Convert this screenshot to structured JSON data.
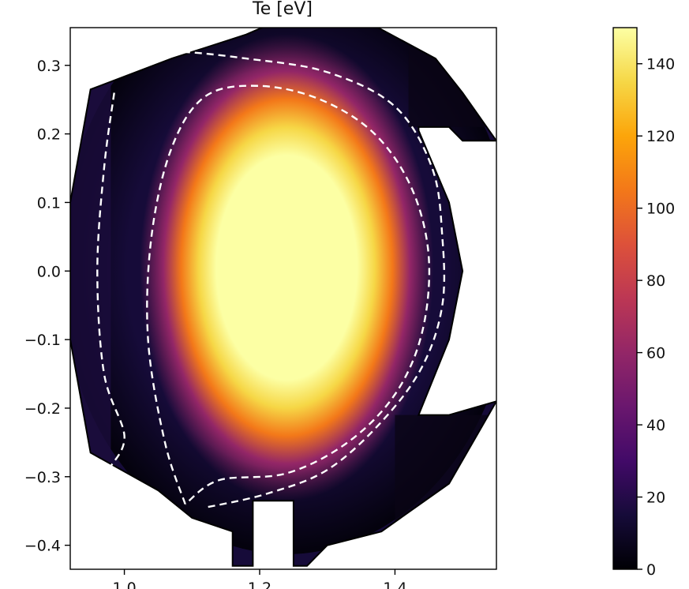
{
  "chart_data": {
    "type": "heatmap",
    "title": "Te [eV]",
    "colormap": "inferno",
    "xlim": [
      0.92,
      1.55
    ],
    "ylim": [
      -0.435,
      0.355
    ],
    "x_ticks": [
      {
        "value": 1.0,
        "label": "1.0"
      },
      {
        "value": 1.2,
        "label": "1.2"
      },
      {
        "value": 1.4,
        "label": "1.4"
      }
    ],
    "y_ticks": [
      {
        "value": 0.3,
        "label": "0.3"
      },
      {
        "value": 0.2,
        "label": "0.2"
      },
      {
        "value": 0.1,
        "label": "0.1"
      },
      {
        "value": 0.0,
        "label": "0.0"
      },
      {
        "value": -0.1,
        "label": "−0.1"
      },
      {
        "value": -0.2,
        "label": "−0.2"
      },
      {
        "value": -0.3,
        "label": "−0.3"
      },
      {
        "value": -0.4,
        "label": "−0.4"
      }
    ],
    "colorbar": {
      "range": [
        0,
        150
      ],
      "ticks": [
        {
          "value": 0,
          "label": "0"
        },
        {
          "value": 20,
          "label": "20"
        },
        {
          "value": 40,
          "label": "40"
        },
        {
          "value": 60,
          "label": "60"
        },
        {
          "value": 80,
          "label": "80"
        },
        {
          "value": 100,
          "label": "100"
        },
        {
          "value": 120,
          "label": "120"
        },
        {
          "value": 140,
          "label": "140"
        }
      ]
    },
    "field": {
      "center": [
        1.24,
        0.005
      ],
      "core_radius": [
        0.14,
        0.22
      ],
      "core_value": 150,
      "edge_value": 20
    },
    "vessel_boundary": [
      [
        0.95,
        0.265
      ],
      [
        1.07,
        0.31
      ],
      [
        1.18,
        0.345
      ],
      [
        1.215,
        0.36
      ],
      [
        1.305,
        0.36
      ],
      [
        1.375,
        0.355
      ],
      [
        1.46,
        0.31
      ],
      [
        1.5,
        0.26
      ],
      [
        1.55,
        0.19
      ],
      [
        1.5,
        0.19
      ],
      [
        1.48,
        0.21
      ],
      [
        1.435,
        0.21
      ],
      [
        1.435,
        0.205
      ],
      [
        1.48,
        0.1
      ],
      [
        1.5,
        0.0
      ],
      [
        1.48,
        -0.1
      ],
      [
        1.435,
        -0.21
      ],
      [
        1.48,
        -0.21
      ],
      [
        1.55,
        -0.19
      ],
      [
        1.48,
        -0.31
      ],
      [
        1.38,
        -0.38
      ],
      [
        1.3,
        -0.4
      ],
      [
        1.27,
        -0.43
      ],
      [
        1.25,
        -0.43
      ],
      [
        1.25,
        -0.335
      ],
      [
        1.19,
        -0.335
      ],
      [
        1.19,
        -0.43
      ],
      [
        1.16,
        -0.43
      ],
      [
        1.16,
        -0.38
      ],
      [
        1.1,
        -0.36
      ],
      [
        1.05,
        -0.32
      ],
      [
        0.95,
        -0.265
      ],
      [
        0.92,
        -0.1
      ],
      [
        0.92,
        0.1
      ]
    ],
    "contours": [
      {
        "style": "dashed",
        "points": [
          [
            1.0,
            0.31
          ],
          [
            1.07,
            0.32
          ],
          [
            1.18,
            0.31
          ],
          [
            1.3,
            0.29
          ],
          [
            1.4,
            0.24
          ],
          [
            1.455,
            0.15
          ],
          [
            1.47,
            0.05
          ],
          [
            1.47,
            -0.05
          ],
          [
            1.44,
            -0.14
          ],
          [
            1.38,
            -0.22
          ],
          [
            1.3,
            -0.29
          ],
          [
            1.21,
            -0.325
          ],
          [
            1.12,
            -0.345
          ]
        ]
      },
      {
        "style": "dashed",
        "points": [
          [
            0.985,
            0.26
          ],
          [
            0.97,
            0.15
          ],
          [
            0.96,
            0.0
          ],
          [
            0.97,
            -0.15
          ],
          [
            1.0,
            -0.24
          ],
          [
            0.98,
            -0.285
          ]
        ]
      },
      {
        "style": "dashed",
        "points": [
          [
            1.09,
            -0.34
          ],
          [
            1.06,
            -0.25
          ],
          [
            1.035,
            -0.1
          ],
          [
            1.04,
            0.05
          ],
          [
            1.07,
            0.18
          ],
          [
            1.12,
            0.255
          ],
          [
            1.2,
            0.27
          ],
          [
            1.29,
            0.25
          ],
          [
            1.37,
            0.2
          ],
          [
            1.425,
            0.12
          ],
          [
            1.45,
            0.02
          ],
          [
            1.44,
            -0.09
          ],
          [
            1.4,
            -0.18
          ],
          [
            1.33,
            -0.25
          ],
          [
            1.24,
            -0.295
          ],
          [
            1.14,
            -0.305
          ],
          [
            1.09,
            -0.34
          ]
        ]
      }
    ]
  }
}
